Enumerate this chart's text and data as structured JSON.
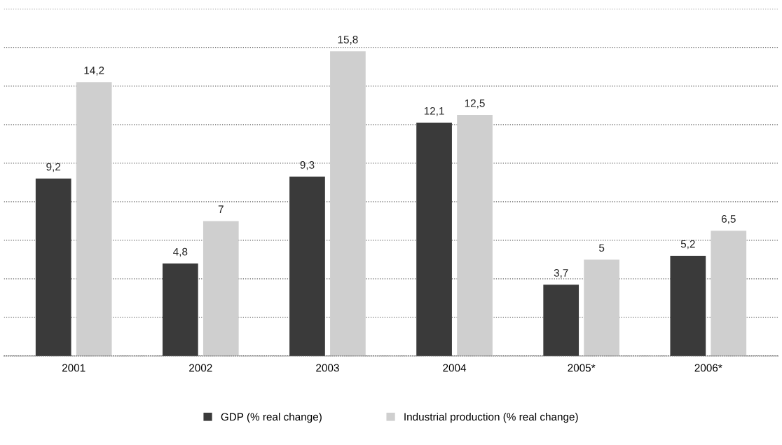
{
  "chart_data": {
    "type": "bar",
    "categories": [
      "2001",
      "2002",
      "2003",
      "2004",
      "2005*",
      "2006*"
    ],
    "series": [
      {
        "name": "GDP (% real change)",
        "color": "#3a3a3a",
        "values": [
          9.2,
          4.8,
          9.3,
          12.1,
          3.7,
          5.2
        ],
        "value_labels": [
          "9,2",
          "4,8",
          "9,3",
          "12,1",
          "3,7",
          "5,2"
        ]
      },
      {
        "name": "Industrial production (% real change)",
        "color": "#cfcfcf",
        "values": [
          14.2,
          7,
          15.8,
          12.5,
          5,
          6.5
        ],
        "value_labels": [
          "14,2",
          "7",
          "15,8",
          "12,5",
          "5",
          "6,5"
        ]
      }
    ],
    "ylim": [
      0,
      18
    ],
    "yticks": [
      {
        "value": 0,
        "label": null
      },
      {
        "value": 2,
        "label": null
      },
      {
        "value": 4,
        "label": null
      },
      {
        "value": 6,
        "label": null
      },
      {
        "value": 8,
        "label": null
      },
      {
        "value": 10,
        "label": null
      },
      {
        "value": 12,
        "label": null
      },
      {
        "value": 14,
        "label": null
      },
      {
        "value": 16,
        "label": null
      },
      {
        "value": 18,
        "label": null
      }
    ],
    "grid": "y",
    "legend": "bottom"
  }
}
